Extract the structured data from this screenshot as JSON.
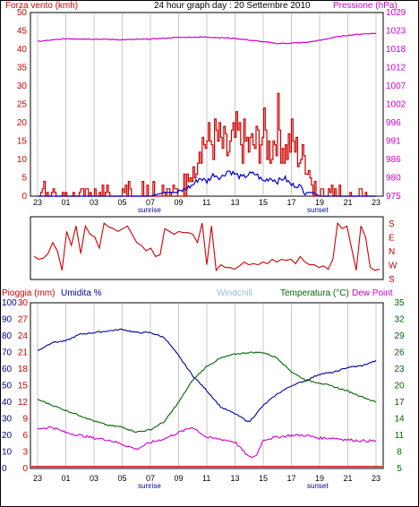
{
  "colors": {
    "wind": "#cc0000",
    "wind_avg": "#0000cc",
    "pressure": "#cc00cc",
    "direction": "#cc0000",
    "rain": "#cc0000",
    "humidity": "#000099",
    "windchill": "#99bbdd",
    "temperature": "#006600",
    "dewpoint": "#cc00cc",
    "grid": "#c8c8c8",
    "frame": "#000000"
  },
  "chart_data": [
    {
      "type": "line",
      "title": "24 hour graph day : 20 Settembre 2010",
      "ylabel_left": "Forza vento (kmh)",
      "ylabel_right": "Pressione (hPa)",
      "x_ticks": [
        "23",
        "01",
        "03",
        "05",
        "07",
        "09",
        "11",
        "13",
        "15",
        "17",
        "19",
        "21",
        "23"
      ],
      "markers": [
        {
          "label": "sunrise",
          "at": "07"
        },
        {
          "label": "sunset",
          "at": "19"
        }
      ],
      "y_left_ticks": [
        0,
        5,
        10,
        15,
        20,
        25,
        30,
        35,
        40,
        45,
        50
      ],
      "y_right_ticks": [
        "975",
        "980",
        "986",
        "991",
        "996",
        "1002",
        "1007",
        "1012",
        "1018",
        "1023",
        "1029"
      ],
      "ylim_left": [
        0,
        50
      ],
      "ylim_right": [
        975,
        1029
      ],
      "series": [
        {
          "name": "Forza vento (kmh)",
          "role": "wind_gust",
          "hours": [
            0,
            1,
            2,
            3,
            4,
            5,
            6,
            7,
            8,
            9,
            10,
            11,
            11.5,
            12,
            12.5,
            13,
            13.5,
            14,
            14.5,
            15,
            15.5,
            16,
            16.5,
            17,
            17.5,
            18,
            18.5,
            19,
            19.5,
            20,
            20.5,
            21,
            22,
            23,
            24
          ],
          "values": [
            4,
            2,
            2,
            2,
            2,
            3,
            4,
            3,
            4,
            4,
            4,
            6,
            15,
            14,
            16,
            14,
            12,
            16,
            15,
            13,
            14,
            17,
            12,
            20,
            12,
            15,
            11,
            10,
            4,
            4,
            2,
            3,
            2,
            2,
            0
          ]
        },
        {
          "name": "Media vento",
          "role": "wind_avg",
          "hours": [
            0,
            2,
            4,
            6,
            8,
            9,
            10,
            10.5,
            11,
            11.5,
            12,
            12.5,
            13,
            13.5,
            14,
            14.5,
            15,
            15.5,
            16,
            16.5,
            17,
            17.5,
            18,
            18.5,
            19,
            19.5,
            20,
            22,
            24
          ],
          "values": [
            0,
            0,
            0,
            0,
            0,
            1,
            1,
            2,
            3,
            5,
            4,
            6,
            5,
            7,
            6,
            5,
            6,
            6,
            4,
            5,
            4,
            5,
            3,
            3,
            1,
            1,
            0,
            0,
            0
          ]
        },
        {
          "name": "Pressione (hPa)",
          "role": "pressure",
          "hours": [
            0,
            2,
            4,
            6,
            8,
            10,
            12,
            14,
            16,
            17,
            18,
            19,
            20,
            21,
            22,
            23,
            24
          ],
          "values": [
            1020.5,
            1021.3,
            1021.2,
            1021.0,
            1021.2,
            1021.7,
            1021.8,
            1021.4,
            1020.4,
            1019.9,
            1020.0,
            1020.2,
            1020.8,
            1021.7,
            1022.3,
            1022.7,
            1022.9
          ]
        }
      ]
    },
    {
      "type": "line",
      "title": "",
      "ylabel_right": [
        "S",
        "E",
        "N",
        "W",
        "S"
      ],
      "series": [
        {
          "name": "Direzione vento",
          "role": "direction",
          "values": [
            0.35,
            0.3,
            0.32,
            0.4,
            0.6,
            0.45,
            0.1,
            0.8,
            0.55,
            0.9,
            0.4,
            0.9,
            0.75,
            0.7,
            0.5,
            0.95,
            0.88,
            0.85,
            0.8,
            0.85,
            0.9,
            0.75,
            0.6,
            0.55,
            0.45,
            0.5,
            0.35,
            0.38,
            0.85,
            0.8,
            0.75,
            0.8,
            0.78,
            0.78,
            0.75,
            0.6,
            0.95,
            0.2,
            0.9,
            0.1,
            0.2,
            0.15,
            0.15,
            0.12,
            0.18,
            0.25,
            0.2,
            0.22,
            0.2,
            0.25,
            0.22,
            0.3,
            0.25,
            0.3,
            0.28,
            0.3,
            0.22,
            0.35,
            0.25,
            0.2,
            0.2,
            0.15,
            0.18,
            0.12,
            0.3,
            0.95,
            0.85,
            0.9,
            0.5,
            0.1,
            0.9,
            0.7,
            0.15,
            0.1,
            0.12
          ]
        }
      ]
    },
    {
      "type": "line",
      "title": "",
      "legend": [
        "Pioggia (mm)",
        "Umidita %",
        "Windchill",
        "Temperatura (°C)",
        "Dew Point"
      ],
      "ylabel_left_outer": "Pioggia (mm)",
      "ylabel_left_inner": "Umidita %",
      "x_ticks": [
        "23",
        "01",
        "03",
        "05",
        "07",
        "09",
        "11",
        "13",
        "15",
        "17",
        "19",
        "21",
        "23"
      ],
      "markers": [
        {
          "label": "sunrise",
          "at": "07"
        },
        {
          "label": "sunset",
          "at": "19"
        }
      ],
      "y_outer_ticks": [
        0,
        10,
        20,
        30,
        40,
        50,
        60,
        70,
        80,
        90,
        100
      ],
      "y_inner_ticks": [
        0,
        3,
        6,
        9,
        12,
        15,
        18,
        21,
        24,
        27,
        30
      ],
      "y_right_ticks": [
        5,
        8,
        11,
        14,
        17,
        20,
        23,
        26,
        29,
        32,
        35
      ],
      "ylim_humidity": [
        0,
        100
      ],
      "ylim_temperature": [
        5,
        35
      ],
      "series": [
        {
          "name": "Umidita %",
          "role": "humidity",
          "hours": [
            0,
            1,
            2,
            3,
            4,
            5,
            6,
            7,
            8,
            9,
            10,
            11,
            12,
            13,
            14,
            15,
            16,
            17,
            18,
            19,
            20,
            21,
            22,
            23,
            24
          ],
          "values": [
            71,
            76,
            77,
            81,
            82,
            83,
            84,
            82,
            82,
            79,
            68,
            56,
            47,
            37,
            33,
            28,
            38,
            45,
            50,
            53,
            57,
            58,
            61,
            62,
            65
          ]
        },
        {
          "name": "Temperatura (°C)",
          "role": "temperature",
          "hours": [
            0,
            1,
            2,
            3,
            4,
            5,
            6,
            7,
            8,
            9,
            10,
            11,
            12,
            13,
            14,
            15,
            16,
            17,
            18,
            19,
            20,
            21,
            22,
            23,
            24
          ],
          "values": [
            17.5,
            16.5,
            15.5,
            14.6,
            13.6,
            12.8,
            12.5,
            11.6,
            12.0,
            13.5,
            17.0,
            21.0,
            23.5,
            25.0,
            25.7,
            26.0,
            26.0,
            25.0,
            22.5,
            21.0,
            20.5,
            19.8,
            19.0,
            18.0,
            17.0
          ]
        },
        {
          "name": "Dew Point",
          "role": "dewpoint",
          "hours": [
            0,
            1,
            2,
            3,
            4,
            5,
            6,
            7,
            8,
            9,
            10,
            11,
            12,
            13,
            14,
            15,
            15.5,
            16,
            17,
            18,
            19,
            20,
            21,
            22,
            23,
            24
          ],
          "values": [
            12.2,
            12.5,
            11.5,
            11.0,
            10.5,
            10.2,
            9.4,
            8.5,
            9.7,
            10.4,
            11.5,
            12.5,
            10.6,
            10.3,
            9.8,
            7.0,
            7.3,
            10.2,
            10.7,
            11.0,
            11.0,
            10.5,
            10.5,
            10.2,
            10.0,
            10.0
          ]
        },
        {
          "name": "Pioggia (mm)",
          "role": "rain",
          "hours": [
            0,
            24
          ],
          "values": [
            0,
            0
          ]
        }
      ]
    }
  ]
}
